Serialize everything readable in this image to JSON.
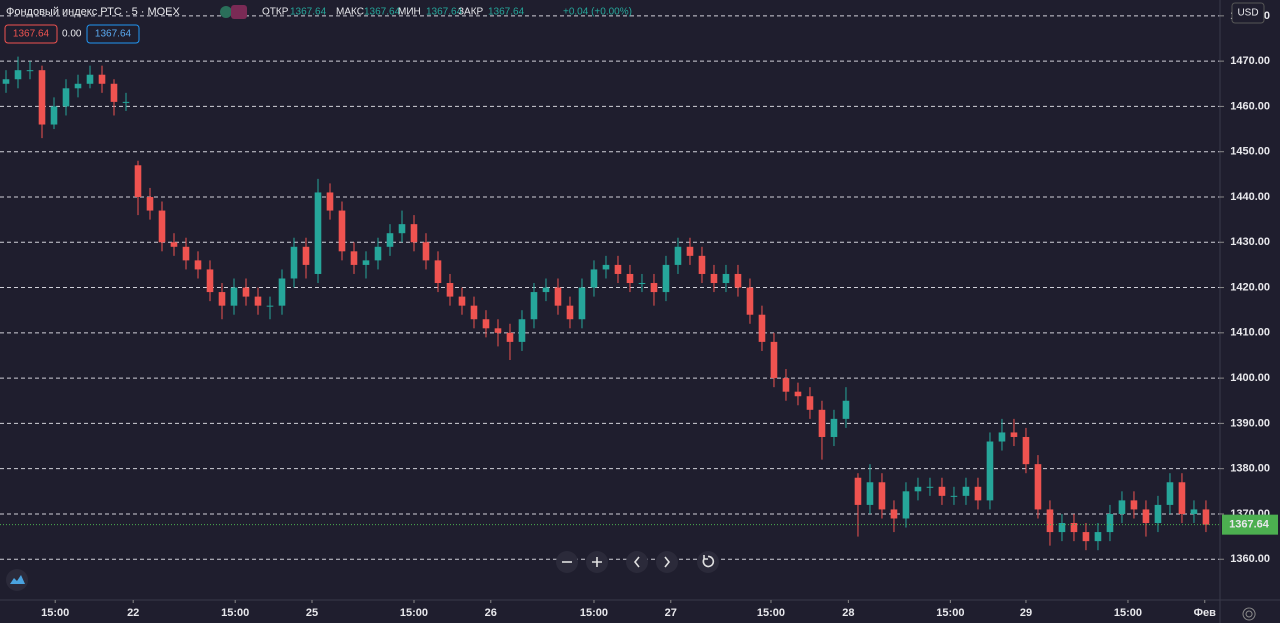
{
  "header": {
    "title": "Фондовый индекс РТС · 5 · MOEX",
    "fields": [
      {
        "label": "ОТКР",
        "value": "1367.64"
      },
      {
        "label": "МАКС",
        "value": "1367.64"
      },
      {
        "label": "МИН",
        "value": "1367.64"
      },
      {
        "label": "ЗАКР",
        "value": "1367.64"
      }
    ],
    "change": "+0.04 (+0.00%)",
    "bid": "1367.64",
    "spread": "0.00",
    "ask": "1367.64",
    "currency": "USD"
  },
  "chart_data": {
    "type": "candlestick",
    "up_color": "#26a69a",
    "down_color": "#ef5350",
    "grid": true,
    "ylim": [
      1351,
      1483.5
    ],
    "yticks": [
      {
        "value": 1360,
        "label": "1360.00"
      },
      {
        "value": 1370,
        "label": "1370.00"
      },
      {
        "value": 1380,
        "label": "1380.00"
      },
      {
        "value": 1390,
        "label": "1390.00"
      },
      {
        "value": 1400,
        "label": "1400.00"
      },
      {
        "value": 1410,
        "label": "1410.00"
      },
      {
        "value": 1420,
        "label": "1420.00"
      },
      {
        "value": 1430,
        "label": "1430.00"
      },
      {
        "value": 1440,
        "label": "1440.00"
      },
      {
        "value": 1450,
        "label": "1450.00"
      },
      {
        "value": 1460,
        "label": "1460.00"
      },
      {
        "value": 1470,
        "label": "1470.00"
      },
      {
        "value": 1480,
        "label": "1480.00"
      }
    ],
    "xlim": [
      -0.5,
      101.17
    ],
    "xticks": [
      {
        "value": 4.1,
        "label": "15:00"
      },
      {
        "value": 10.6,
        "label": "22"
      },
      {
        "value": 19.1,
        "label": "15:00"
      },
      {
        "value": 25.5,
        "label": "25"
      },
      {
        "value": 34,
        "label": "15:00"
      },
      {
        "value": 40.4,
        "label": "26"
      },
      {
        "value": 49,
        "label": "15:00"
      },
      {
        "value": 55.4,
        "label": "27"
      },
      {
        "value": 63.75,
        "label": "15:00"
      },
      {
        "value": 70.2,
        "label": "28"
      },
      {
        "value": 78.7,
        "label": "15:00"
      },
      {
        "value": 85,
        "label": "29"
      },
      {
        "value": 93.5,
        "label": "15:00"
      },
      {
        "value": 99.9,
        "label": "Фев"
      }
    ],
    "last_price": 1367.64,
    "open": [
      1465,
      1466,
      1468,
      1468,
      1456,
      1460,
      1464,
      1465,
      1467,
      1465,
      1461,
      1447,
      1440,
      1437,
      1430,
      1429,
      1426,
      1424,
      1419,
      1416,
      1420,
      1418,
      1416,
      1416,
      1422,
      1429,
      1423,
      1441,
      1437,
      1428,
      1425,
      1426,
      1429,
      1432,
      1434,
      1430,
      1426,
      1421,
      1418,
      1416,
      1413,
      1411,
      1410,
      1408,
      1413,
      1419,
      1420,
      1416,
      1413,
      1420,
      1424,
      1425,
      1423,
      1421,
      1421,
      1419,
      1425,
      1429,
      1427,
      1423,
      1421,
      1423,
      1420,
      1414,
      1408,
      1400,
      1397,
      1396,
      1393,
      1387,
      1391,
      1378,
      1372,
      1377,
      1371,
      1369,
      1375,
      1376,
      1376,
      1374,
      1374,
      1376,
      1373,
      1386,
      1388,
      1387,
      1381,
      1371,
      1366,
      1368,
      1366,
      1364,
      1366,
      1370,
      1373,
      1371,
      1368,
      1372,
      1377,
      1370,
      1371
    ],
    "high": [
      1468,
      1471,
      1470,
      1469,
      1462,
      1466,
      1467,
      1469,
      1469,
      1466,
      1463,
      1448,
      1442,
      1439,
      1432,
      1431,
      1428,
      1426,
      1421,
      1422,
      1422,
      1420,
      1418,
      1424,
      1431,
      1431,
      1444,
      1443,
      1439,
      1430,
      1428,
      1431,
      1434,
      1437,
      1436,
      1432,
      1428,
      1423,
      1420,
      1418,
      1415,
      1413,
      1412,
      1415,
      1421,
      1422,
      1422,
      1418,
      1422,
      1426,
      1427,
      1427,
      1425,
      1423,
      1423,
      1427,
      1431,
      1431,
      1429,
      1425,
      1425,
      1425,
      1422,
      1416,
      1410,
      1402,
      1399,
      1398,
      1395,
      1393,
      1398,
      1379,
      1381,
      1379,
      1373,
      1377,
      1378,
      1378,
      1378,
      1376,
      1378,
      1378,
      1388,
      1391,
      1391,
      1389,
      1383,
      1373,
      1370,
      1370,
      1368,
      1368,
      1372,
      1375,
      1375,
      1373,
      1374,
      1379,
      1379,
      1373,
      1373
    ],
    "low": [
      1463,
      1464,
      1466,
      1453,
      1455,
      1458,
      1462,
      1464,
      1463,
      1458,
      1459,
      1436,
      1435,
      1428,
      1427,
      1424,
      1422,
      1417,
      1413,
      1414,
      1416,
      1414,
      1413,
      1414,
      1420,
      1422,
      1421,
      1435,
      1426,
      1423,
      1422,
      1424,
      1427,
      1430,
      1428,
      1424,
      1419,
      1416,
      1414,
      1411,
      1409,
      1407,
      1404,
      1406,
      1411,
      1417,
      1414,
      1411,
      1411,
      1418,
      1422,
      1421,
      1419,
      1419,
      1416,
      1417,
      1423,
      1425,
      1421,
      1419,
      1419,
      1418,
      1412,
      1406,
      1398,
      1395,
      1394,
      1391,
      1382,
      1385,
      1389,
      1365,
      1370,
      1369,
      1366,
      1367,
      1373,
      1374,
      1372,
      1372,
      1372,
      1371,
      1371,
      1384,
      1385,
      1379,
      1369,
      1363,
      1364,
      1364,
      1362,
      1362,
      1364,
      1368,
      1369,
      1365,
      1366,
      1370,
      1368,
      1368,
      1366
    ],
    "close": [
      1466,
      1468,
      1468,
      1456,
      1460,
      1464,
      1465,
      1467,
      1465,
      1461,
      1461,
      1440,
      1437,
      1430,
      1429,
      1426,
      1424,
      1419,
      1416,
      1420,
      1418,
      1416,
      1416,
      1422,
      1429,
      1425,
      1441,
      1437,
      1428,
      1425,
      1426,
      1429,
      1432,
      1434,
      1430,
      1426,
      1421,
      1418,
      1416,
      1413,
      1411,
      1410,
      1408,
      1413,
      1419,
      1420,
      1416,
      1413,
      1420,
      1424,
      1425,
      1423,
      1421,
      1421,
      1419,
      1425,
      1429,
      1427,
      1423,
      1421,
      1423,
      1420,
      1414,
      1408,
      1400,
      1397,
      1396,
      1393,
      1387,
      1391,
      1395,
      1372,
      1377,
      1371,
      1369,
      1375,
      1376,
      1376,
      1374,
      1374,
      1376,
      1373,
      1386,
      1388,
      1387,
      1381,
      1371,
      1366,
      1368,
      1366,
      1364,
      1366,
      1370,
      1373,
      1371,
      1368,
      1372,
      1377,
      1370,
      1371,
      1367.64
    ]
  }
}
